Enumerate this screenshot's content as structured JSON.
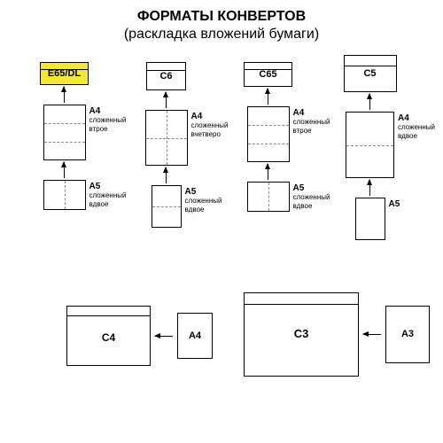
{
  "title_line1": "ФОРМАТЫ КОНВЕРТОВ",
  "title_line2": "(раскладка вложений бумаги)",
  "colors": {
    "highlight": "#f3e73a",
    "background": "#ffffff",
    "border": "#000000",
    "fold": "#888888"
  },
  "columns": [
    {
      "envelope": {
        "label": "E65/DL",
        "highlighted": true
      },
      "a4": {
        "title": "A4",
        "subtitle": "сложенный\nвтрое",
        "folds": "thirds-h"
      },
      "a5": {
        "title": "A5",
        "subtitle": "сложенный\nвдвое",
        "folds": "half-v"
      }
    },
    {
      "envelope": {
        "label": "C6",
        "highlighted": false
      },
      "a4": {
        "title": "A4",
        "subtitle": "сложенный\nвчетверо",
        "folds": "quarters"
      },
      "a5": {
        "title": "A5",
        "subtitle": "сложенный\nвдвое",
        "folds": "half-h"
      }
    },
    {
      "envelope": {
        "label": "C65",
        "highlighted": false
      },
      "a4": {
        "title": "A4",
        "subtitle": "сложенный\nвтрое",
        "folds": "thirds-h"
      },
      "a5": {
        "title": "A5",
        "subtitle": "сложенный\nвдвое",
        "folds": "half-v"
      }
    },
    {
      "envelope": {
        "label": "C5",
        "highlighted": false
      },
      "a4": {
        "title": "A4",
        "subtitle": "сложенный\nвдвое",
        "folds": "half-h"
      },
      "a5": {
        "title": "A5",
        "subtitle": "",
        "folds": "none"
      }
    }
  ],
  "bottom": {
    "c4": {
      "label": "C4"
    },
    "a4": {
      "label": "A4"
    },
    "c3": {
      "label": "C3"
    },
    "a3": {
      "label": "A3"
    }
  }
}
